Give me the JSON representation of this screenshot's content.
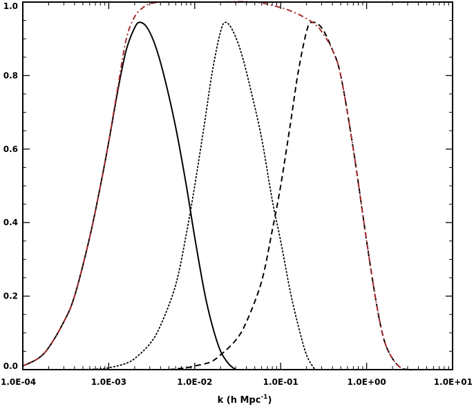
{
  "chart_data": {
    "type": "line",
    "title": "",
    "xlabel": "k (h Mpc",
    "xlabel_sup": "-1",
    "xlabel_close": ")",
    "ylabel": "",
    "xscale": "log",
    "xlim": [
      0.0001,
      10
    ],
    "ylim": [
      0,
      1
    ],
    "x_ticks": [
      0.0001,
      0.001,
      0.01,
      0.1,
      1,
      10
    ],
    "x_tick_labels": [
      "1.0E-04",
      "1.0E-03",
      "1.0E-02",
      "1.0E-01",
      "1.0E+00",
      "1.0E+01"
    ],
    "y_ticks": [
      0,
      0.2,
      0.4,
      0.6,
      0.8,
      1.0
    ],
    "y_tick_labels": [
      "0.0",
      "0.2",
      "0.4",
      "0.6",
      "0.8",
      "1.0"
    ],
    "grid": false,
    "legend": "none",
    "series": [
      {
        "style": "solid",
        "color": "#000000",
        "x": [
          0.0001,
          0.00015,
          0.0002,
          0.0003,
          0.0004,
          0.0006,
          0.0008,
          0.001,
          0.0013,
          0.0016,
          0.002,
          0.0023,
          0.0028,
          0.0035,
          0.0045,
          0.006,
          0.008,
          0.01,
          0.013,
          0.016,
          0.02,
          0.025,
          0.03
        ],
        "y": [
          0.01,
          0.03,
          0.06,
          0.13,
          0.2,
          0.36,
          0.5,
          0.62,
          0.77,
          0.87,
          0.93,
          0.945,
          0.93,
          0.88,
          0.79,
          0.66,
          0.5,
          0.36,
          0.21,
          0.12,
          0.05,
          0.015,
          0.0
        ]
      },
      {
        "style": "dotted",
        "color": "#000000",
        "x": [
          0.0005,
          0.0008,
          0.001,
          0.0015,
          0.002,
          0.003,
          0.004,
          0.006,
          0.008,
          0.01,
          0.013,
          0.016,
          0.02,
          0.023,
          0.028,
          0.035,
          0.045,
          0.06,
          0.08,
          0.1,
          0.13,
          0.16,
          0.2,
          0.25
        ],
        "y": [
          0.0,
          0.002,
          0.005,
          0.015,
          0.03,
          0.07,
          0.12,
          0.23,
          0.37,
          0.5,
          0.67,
          0.81,
          0.92,
          0.945,
          0.92,
          0.86,
          0.76,
          0.63,
          0.46,
          0.35,
          0.21,
          0.12,
          0.04,
          0.0
        ]
      },
      {
        "style": "dashed",
        "color": "#000000",
        "x": [
          0.005,
          0.008,
          0.01,
          0.015,
          0.02,
          0.03,
          0.04,
          0.06,
          0.08,
          0.1,
          0.13,
          0.16,
          0.2,
          0.23,
          0.3,
          0.4,
          0.5,
          0.7,
          1.0,
          1.3,
          1.6,
          2.0,
          2.5,
          3.0
        ],
        "y": [
          0.0,
          0.005,
          0.01,
          0.02,
          0.04,
          0.08,
          0.13,
          0.24,
          0.38,
          0.5,
          0.67,
          0.81,
          0.92,
          0.945,
          0.93,
          0.87,
          0.8,
          0.6,
          0.35,
          0.18,
          0.08,
          0.03,
          0.005,
          0.0
        ]
      },
      {
        "style": "dash-dot",
        "color": "#a52a2a",
        "x": [
          0.0001,
          0.00015,
          0.0002,
          0.0003,
          0.0004,
          0.0006,
          0.0008,
          0.001,
          0.0013,
          0.0016,
          0.002,
          0.0025,
          0.003,
          0.004,
          0.006,
          0.01,
          0.02,
          0.05,
          0.1,
          0.15,
          0.2,
          0.25,
          0.3,
          0.4,
          0.5,
          0.7,
          1.0,
          1.3,
          1.6,
          2.0,
          2.5,
          3.0,
          5.0,
          10
        ],
        "y": [
          0.01,
          0.03,
          0.06,
          0.13,
          0.2,
          0.36,
          0.5,
          0.62,
          0.78,
          0.9,
          0.96,
          0.985,
          0.995,
          1.0,
          1.0,
          1.0,
          1.0,
          1.0,
          0.985,
          0.97,
          0.955,
          0.94,
          0.92,
          0.87,
          0.8,
          0.6,
          0.35,
          0.18,
          0.08,
          0.03,
          0.005,
          0.0,
          0.0,
          0.0
        ]
      }
    ]
  }
}
